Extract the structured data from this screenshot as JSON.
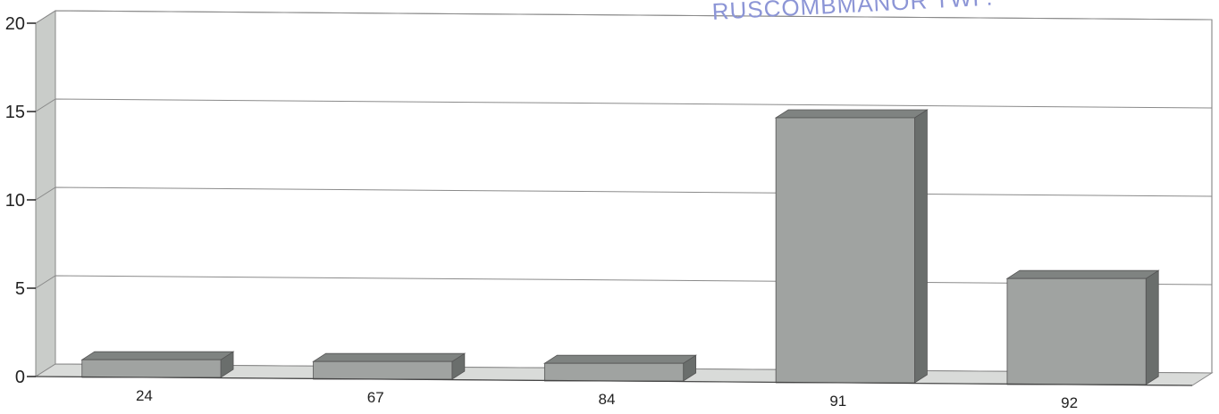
{
  "stamp": {
    "text": "RUSCOMBMANOR TWP."
  },
  "colors": {
    "bar_front": "#a0a3a1",
    "bar_top": "#7f8381",
    "bar_side": "#6a6e6c",
    "back_wall": "#ffffff",
    "left_wall": "#c9ccc9",
    "floor": "#d9dbd9",
    "gridline": "#8a8a8a",
    "stamp": "#8c95d6"
  },
  "chart_data": {
    "type": "bar",
    "categories": [
      "24",
      "67",
      "84",
      "91",
      "92"
    ],
    "values": [
      1,
      1,
      1,
      15,
      6
    ],
    "ylim": [
      0,
      20
    ],
    "yticks": [
      0,
      5,
      10,
      15,
      20
    ],
    "grid": true,
    "style": "3d"
  }
}
